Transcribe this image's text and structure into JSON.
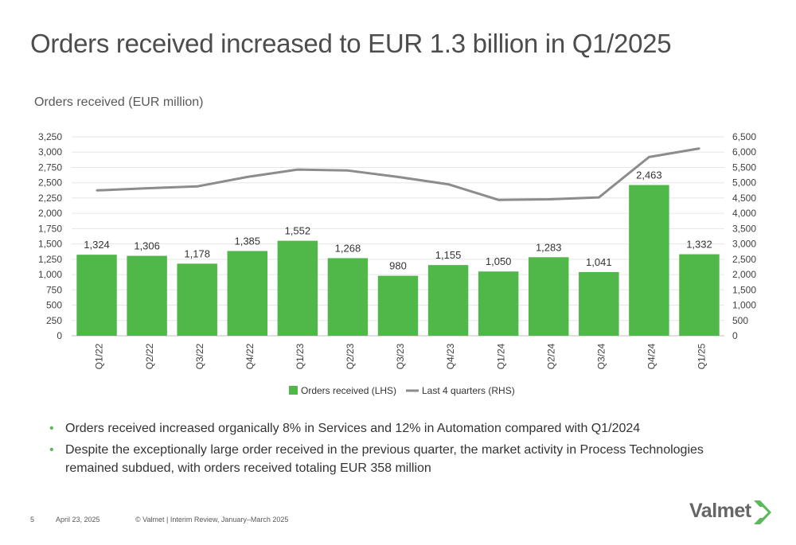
{
  "title": "Orders received increased to EUR 1.3 billion in Q1/2025",
  "chart_data": {
    "type": "bar",
    "title": "Orders received (EUR million)",
    "categories": [
      "Q1/22",
      "Q2/22",
      "Q3/22",
      "Q4/22",
      "Q1/23",
      "Q2/23",
      "Q3/23",
      "Q4/23",
      "Q1/24",
      "Q2/24",
      "Q3/24",
      "Q4/24",
      "Q1/25"
    ],
    "series": [
      {
        "name": "Orders received (LHS)",
        "type": "bar",
        "axis": "left",
        "color": "#4fb848",
        "values": [
          1324,
          1306,
          1178,
          1385,
          1552,
          1268,
          980,
          1155,
          1050,
          1283,
          1041,
          2463,
          1332
        ],
        "labels": [
          "1,324",
          "1,306",
          "1,178",
          "1,385",
          "1,552",
          "1,268",
          "980",
          "1,155",
          "1,050",
          "1,283",
          "1,041",
          "2,463",
          "1,332"
        ]
      },
      {
        "name": "Last 4 quarters (RHS)",
        "type": "line",
        "axis": "right",
        "color": "#8c8c8c",
        "values": [
          4750,
          4820,
          4880,
          5190,
          5430,
          5400,
          5190,
          4950,
          4440,
          4460,
          4520,
          5840,
          6120
        ]
      }
    ],
    "y_left": {
      "min": 0,
      "max": 3250,
      "ticks": [
        0,
        250,
        500,
        750,
        1000,
        1250,
        1500,
        1750,
        2000,
        2250,
        2500,
        2750,
        3000,
        3250
      ],
      "tick_labels": [
        "0",
        "250",
        "500",
        "750",
        "1,000",
        "1,250",
        "1,500",
        "1,750",
        "2,000",
        "2,250",
        "2,500",
        "2,750",
        "3,000",
        "3,250"
      ]
    },
    "y_right": {
      "min": 0,
      "max": 6500,
      "ticks": [
        0,
        500,
        1000,
        1500,
        2000,
        2500,
        3000,
        3500,
        4000,
        4500,
        5000,
        5500,
        6000,
        6500
      ],
      "tick_labels": [
        "0",
        "500",
        "1,000",
        "1,500",
        "2,000",
        "2,500",
        "3,000",
        "3,500",
        "4,000",
        "4,500",
        "5,000",
        "5,500",
        "6,000",
        "6,500"
      ]
    },
    "grid": true,
    "legend_position": "bottom"
  },
  "bullets": [
    "Orders received increased organically 8% in Services and 12% in Automation compared with Q1/2024",
    "Despite the exceptionally large order received in the previous quarter, the market activity in Process Technologies remained subdued, with orders received totaling EUR 358 million"
  ],
  "footer": {
    "page_number": "5",
    "date": "April 23, 2025",
    "copyright": "© Valmet  | Interim Review, January–March 2025"
  },
  "logo": {
    "text": "Valmet",
    "icon": "valmet-chevron-icon"
  }
}
